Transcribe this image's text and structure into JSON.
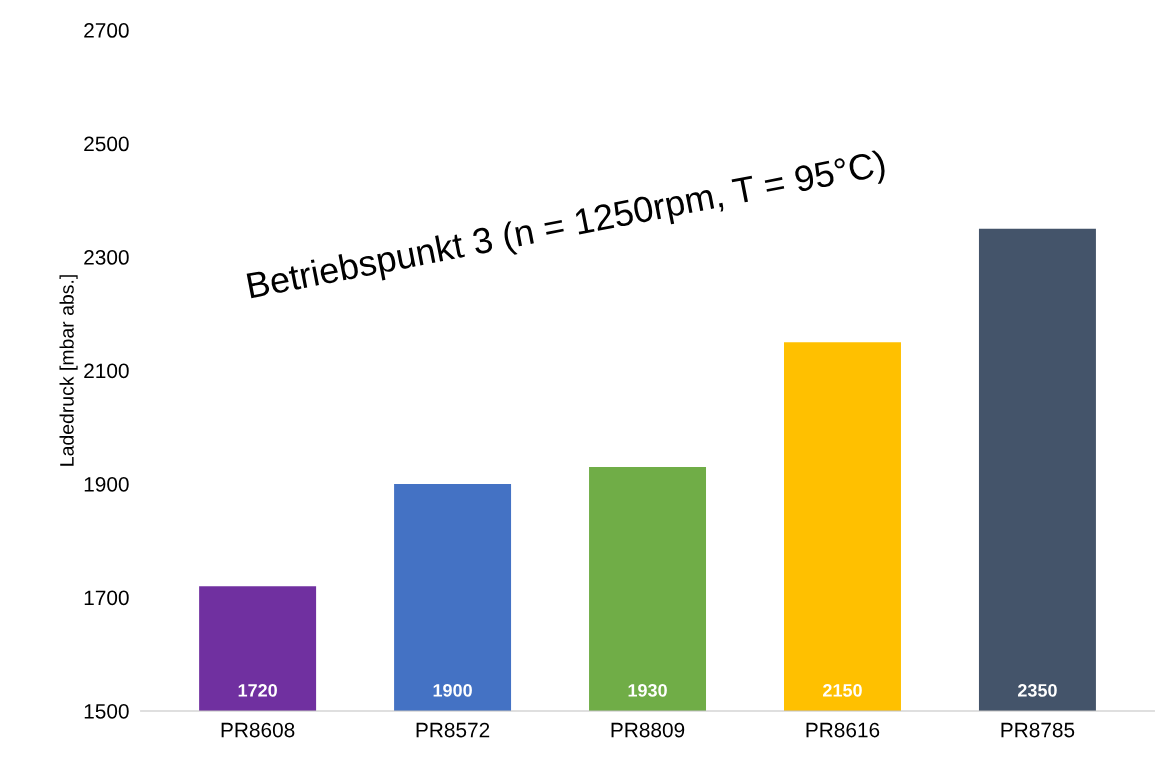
{
  "chart_data": {
    "type": "bar",
    "title": "Betriebspunkt 3 (n = 1250rpm, T = 95°C)",
    "ylabel": "Ladedruck [mbar abs.]",
    "categories": [
      "PR8608",
      "PR8572",
      "PR8809",
      "PR8616",
      "PR8785"
    ],
    "values": [
      1720,
      1900,
      1930,
      2150,
      2350
    ],
    "colors": [
      "#7030a0",
      "#4472c4",
      "#70ad47",
      "#ffc000",
      "#44546a"
    ],
    "ylim": [
      1500,
      2700
    ],
    "yticks": [
      1500,
      1700,
      1900,
      2100,
      2300,
      2500,
      2700
    ],
    "data_labels": true,
    "grid": false
  }
}
